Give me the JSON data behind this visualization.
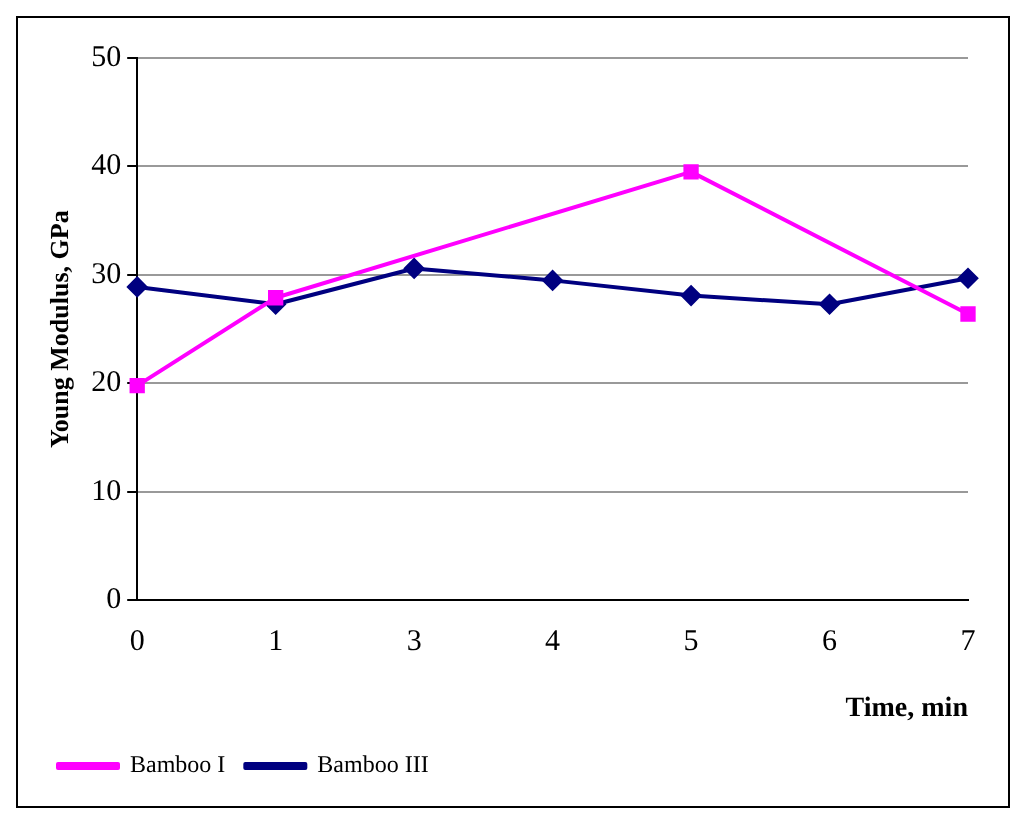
{
  "chart_data": {
    "type": "line",
    "xlabel": "Time, min",
    "ylabel": "Young Modulus, GPa",
    "categories": [
      "0",
      "1",
      "3",
      "4",
      "5",
      "6",
      "7"
    ],
    "series": [
      {
        "name": "Bamboo III",
        "color": "#000080",
        "marker": "diamond",
        "values": [
          28.9,
          27.3,
          30.6,
          29.5,
          28.1,
          27.3,
          29.7
        ]
      },
      {
        "name": "Bamboo I",
        "color": "#ff00ff",
        "marker": "square",
        "values": [
          19.8,
          27.9,
          null,
          null,
          39.5,
          null,
          26.4
        ]
      }
    ],
    "ylim": [
      0,
      50
    ],
    "yticks": [
      0,
      10,
      20,
      30,
      40,
      50
    ],
    "grid": "y",
    "legend": "bottom left"
  }
}
